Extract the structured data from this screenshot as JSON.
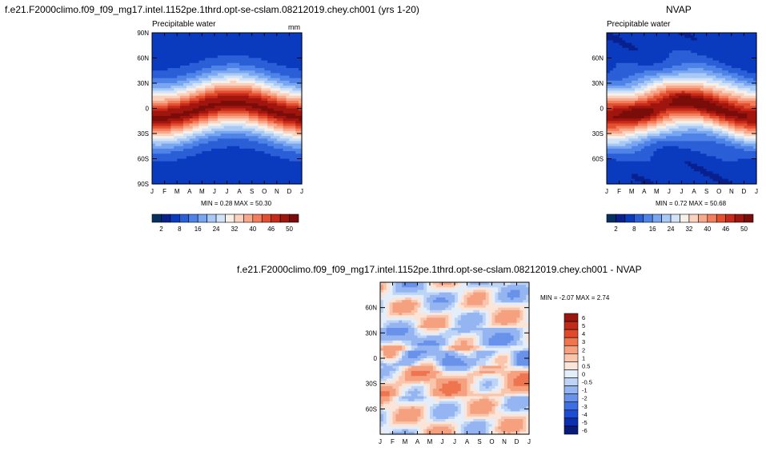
{
  "colors": {
    "seq": [
      "#053061",
      "#08218f",
      "#0a3bbf",
      "#2a5fd8",
      "#4f83e8",
      "#79a6f0",
      "#a8c8f5",
      "#d2e3f8",
      "#f6f0e8",
      "#fbd2bf",
      "#f8a98c",
      "#f27e5d",
      "#e3502f",
      "#c72a1a",
      "#a0160e",
      "#7a0d0a"
    ],
    "diff": [
      "#081a7a",
      "#0c2fb0",
      "#1c4cd4",
      "#3d6fe2",
      "#6992ea",
      "#94b5f1",
      "#bed4f6",
      "#e4eefa",
      "#fbe4d8",
      "#f9c6ad",
      "#f5a07f",
      "#ee7550",
      "#e04a2a",
      "#c02a19",
      "#9a1710"
    ]
  },
  "panels": [
    {
      "id": "cam",
      "title": "f.e21.F2000climo.f09_f09_mg17.intel.1152pe.1thrd.opt-se-cslam.08212019.chey.ch001 (yrs 1-20)",
      "subtitle": "Precipitable water",
      "units": "mm",
      "min_max_text": "MIN =   0.28 MAX =  50.30"
    },
    {
      "id": "nvap",
      "title": "NVAP",
      "subtitle": "Precipitable water",
      "units": "",
      "min_max_text": "MIN =   0.72 MAX =  50.68"
    },
    {
      "id": "diff",
      "title": "f.e21.F2000climo.f09_f09_mg17.intel.1152pe.1thrd.opt-se-cslam.08212019.chey.ch001 - NVAP",
      "subtitle": "",
      "units": "",
      "min_max_text": "MIN =  -2.07 MAX =   2.74"
    }
  ],
  "chart_data": [
    {
      "type": "heatmap",
      "title": "f.e21.F2000climo.f09_f09_mg17.intel.1152pe.1thrd.opt-se-cslam.08212019.chey.ch001 (yrs 1-20)",
      "subtitle": "Precipitable water",
      "units": "mm",
      "x_ticks": [
        "J",
        "F",
        "M",
        "A",
        "M",
        "J",
        "J",
        "A",
        "S",
        "O",
        "N",
        "D",
        "J"
      ],
      "y_ticks": [
        "90N",
        "60N",
        "30N",
        "0",
        "30S",
        "60S",
        "90S"
      ],
      "ylim": [
        -90,
        90
      ],
      "min": 0.28,
      "max": 50.3,
      "levels": [
        2,
        5,
        8,
        12,
        16,
        20,
        24,
        28,
        32,
        36,
        40,
        43,
        46,
        48,
        50
      ],
      "colorbar_labels": [
        "2",
        "8",
        "16",
        "24",
        "32",
        "40",
        "46",
        "50"
      ]
    },
    {
      "type": "heatmap",
      "title": "NVAP",
      "subtitle": "Precipitable water",
      "x_ticks": [
        "J",
        "F",
        "M",
        "A",
        "M",
        "J",
        "J",
        "A",
        "S",
        "O",
        "N",
        "D",
        "J"
      ],
      "y_ticks": [
        "60N",
        "30N",
        "0",
        "30S",
        "60S"
      ],
      "ylim": [
        -90,
        90
      ],
      "min": 0.72,
      "max": 50.68,
      "levels": [
        2,
        5,
        8,
        12,
        16,
        20,
        24,
        28,
        32,
        36,
        40,
        43,
        46,
        48,
        50
      ],
      "colorbar_labels": [
        "2",
        "8",
        "16",
        "24",
        "32",
        "40",
        "46",
        "50"
      ]
    },
    {
      "type": "heatmap",
      "title": "f.e21.F2000climo.f09_f09_mg17.intel.1152pe.1thrd.opt-se-cslam.08212019.chey.ch001 - NVAP",
      "x_ticks": [
        "J",
        "F",
        "M",
        "A",
        "M",
        "J",
        "J",
        "A",
        "S",
        "O",
        "N",
        "D",
        "J"
      ],
      "y_ticks": [
        "60N",
        "30N",
        "0",
        "30S",
        "60S"
      ],
      "ylim": [
        -90,
        90
      ],
      "min": -2.07,
      "max": 2.74,
      "levels": [
        -6,
        -5,
        -4,
        -3,
        -2,
        -1,
        -0.5,
        0,
        0.5,
        1,
        2,
        3,
        4,
        5,
        6
      ],
      "colorbar_labels": [
        "6",
        "5",
        "4",
        "3",
        "2",
        "1",
        "0.5",
        "0",
        "-0.5",
        "-1",
        "-2",
        "-3",
        "-4",
        "-5",
        "-6"
      ]
    }
  ]
}
